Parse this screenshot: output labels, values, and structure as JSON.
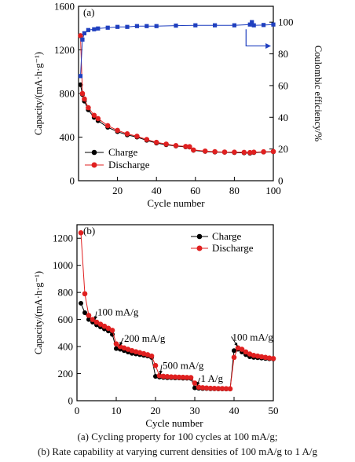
{
  "chart_data": [
    {
      "type": "line",
      "panel_label": "(a)",
      "xlabel": "Cycle number",
      "ylabel": "Capacity/(mA·h·g⁻¹)",
      "y2label": "Coulombic efficiency/%",
      "xlim": [
        0,
        100
      ],
      "ylim": [
        0,
        1600
      ],
      "y2lim": [
        0,
        110
      ],
      "xticks": [
        20,
        40,
        60,
        80,
        100
      ],
      "yticks": [
        0,
        400,
        800,
        1200,
        1600
      ],
      "y2ticks": [
        0,
        20,
        40,
        60,
        80,
        100
      ],
      "legend_position": "bottom-left",
      "series": [
        {
          "name": "Charge",
          "color": "#000000",
          "axis": "left",
          "points": [
            [
              1,
              880
            ],
            [
              2,
              790
            ],
            [
              3,
              730
            ],
            [
              5,
              650
            ],
            [
              8,
              580
            ],
            [
              10,
              550
            ],
            [
              15,
              490
            ],
            [
              20,
              450
            ],
            [
              25,
              420
            ],
            [
              30,
              400
            ],
            [
              35,
              370
            ],
            [
              40,
              345
            ],
            [
              45,
              330
            ],
            [
              50,
              318
            ],
            [
              55,
              310
            ],
            [
              57,
              308
            ],
            [
              59,
              278
            ],
            [
              65,
              268
            ],
            [
              70,
              262
            ],
            [
              75,
              260
            ],
            [
              80,
              258
            ],
            [
              85,
              255
            ],
            [
              88,
              252
            ],
            [
              90,
              258
            ],
            [
              95,
              262
            ],
            [
              100,
              265
            ]
          ]
        },
        {
          "name": "Discharge",
          "color": "#e02020",
          "axis": "left",
          "points": [
            [
              1,
              1330
            ],
            [
              2,
              800
            ],
            [
              3,
              750
            ],
            [
              5,
              670
            ],
            [
              8,
              600
            ],
            [
              10,
              570
            ],
            [
              15,
              505
            ],
            [
              20,
              462
            ],
            [
              25,
              430
            ],
            [
              30,
              408
            ],
            [
              35,
              378
            ],
            [
              40,
              352
            ],
            [
              45,
              336
            ],
            [
              50,
              322
            ],
            [
              55,
              314
            ],
            [
              57,
              312
            ],
            [
              59,
              282
            ],
            [
              65,
              272
            ],
            [
              70,
              266
            ],
            [
              75,
              263
            ],
            [
              80,
              262
            ],
            [
              85,
              260
            ],
            [
              88,
              258
            ],
            [
              90,
              262
            ],
            [
              95,
              265
            ],
            [
              100,
              268
            ]
          ]
        },
        {
          "name": "Coulombic efficiency",
          "color": "#1f3fbf",
          "axis": "right",
          "points": [
            [
              1,
              66
            ],
            [
              2,
              89
            ],
            [
              3,
              93
            ],
            [
              5,
              95
            ],
            [
              8,
              95.5
            ],
            [
              10,
              96
            ],
            [
              15,
              96.5
            ],
            [
              20,
              97
            ],
            [
              25,
              97
            ],
            [
              30,
              97.5
            ],
            [
              35,
              97.5
            ],
            [
              40,
              97.5
            ],
            [
              50,
              97.8
            ],
            [
              60,
              98
            ],
            [
              70,
              98
            ],
            [
              80,
              98
            ],
            [
              88,
              98.5
            ],
            [
              89,
              100
            ],
            [
              90,
              98
            ],
            [
              95,
              98.2
            ],
            [
              100,
              98.5
            ]
          ]
        }
      ],
      "annotation": {
        "type": "arrow",
        "from": [
          86,
          95.5
        ],
        "to": [
          96,
          85
        ],
        "points_to": "right-axis"
      }
    },
    {
      "type": "line",
      "panel_label": "(b)",
      "xlabel": "Cycle number",
      "ylabel": "Capacity/(mA·h·g⁻¹)",
      "xlim": [
        0,
        50
      ],
      "ylim": [
        0,
        1300
      ],
      "xticks": [
        0,
        10,
        20,
        30,
        40,
        50
      ],
      "yticks": [
        0,
        200,
        400,
        600,
        800,
        1000,
        1200
      ],
      "legend_position": "top-right",
      "series": [
        {
          "name": "Charge",
          "color": "#000000",
          "points": [
            [
              1,
              720
            ],
            [
              2,
              650
            ],
            [
              3,
              600
            ],
            [
              4,
              580
            ],
            [
              5,
              560
            ],
            [
              6,
              545
            ],
            [
              7,
              530
            ],
            [
              8,
              515
            ],
            [
              9,
              490
            ],
            [
              10,
              385
            ],
            [
              11,
              380
            ],
            [
              12,
              370
            ],
            [
              13,
              360
            ],
            [
              14,
              350
            ],
            [
              15,
              345
            ],
            [
              16,
              340
            ],
            [
              17,
              335
            ],
            [
              18,
              330
            ],
            [
              19,
              320
            ],
            [
              20,
              180
            ],
            [
              21,
              175
            ],
            [
              22,
              172
            ],
            [
              23,
              170
            ],
            [
              24,
              170
            ],
            [
              25,
              168
            ],
            [
              26,
              168
            ],
            [
              27,
              166
            ],
            [
              28,
              166
            ],
            [
              29,
              165
            ],
            [
              30,
              95
            ],
            [
              31,
              92
            ],
            [
              32,
              90
            ],
            [
              33,
              90
            ],
            [
              34,
              88
            ],
            [
              35,
              88
            ],
            [
              36,
              87
            ],
            [
              37,
              87
            ],
            [
              38,
              86
            ],
            [
              39,
              86
            ],
            [
              40,
              370
            ],
            [
              41,
              380
            ],
            [
              42,
              360
            ],
            [
              43,
              340
            ],
            [
              44,
              325
            ],
            [
              45,
              320
            ],
            [
              46,
              318
            ],
            [
              47,
              315
            ],
            [
              48,
              312
            ],
            [
              49,
              310
            ],
            [
              50,
              308
            ]
          ]
        },
        {
          "name": "Discharge",
          "color": "#e02020",
          "points": [
            [
              1,
              1240
            ],
            [
              2,
              790
            ],
            [
              3,
              630
            ],
            [
              4,
              600
            ],
            [
              5,
              580
            ],
            [
              6,
              565
            ],
            [
              7,
              550
            ],
            [
              8,
              535
            ],
            [
              9,
              520
            ],
            [
              10,
              420
            ],
            [
              11,
              400
            ],
            [
              12,
              390
            ],
            [
              13,
              380
            ],
            [
              14,
              370
            ],
            [
              15,
              362
            ],
            [
              16,
              355
            ],
            [
              17,
              348
            ],
            [
              18,
              340
            ],
            [
              19,
              330
            ],
            [
              20,
              260
            ],
            [
              21,
              185
            ],
            [
              22,
              180
            ],
            [
              23,
              178
            ],
            [
              24,
              176
            ],
            [
              25,
              175
            ],
            [
              26,
              174
            ],
            [
              27,
              173
            ],
            [
              28,
              172
            ],
            [
              29,
              171
            ],
            [
              30,
              130
            ],
            [
              31,
              100
            ],
            [
              32,
              96
            ],
            [
              33,
              94
            ],
            [
              34,
              92
            ],
            [
              35,
              91
            ],
            [
              36,
              90
            ],
            [
              37,
              90
            ],
            [
              38,
              89
            ],
            [
              39,
              88
            ],
            [
              40,
              320
            ],
            [
              41,
              390
            ],
            [
              42,
              380
            ],
            [
              43,
              360
            ],
            [
              44,
              345
            ],
            [
              45,
              335
            ],
            [
              46,
              330
            ],
            [
              47,
              325
            ],
            [
              48,
              320
            ],
            [
              49,
              315
            ],
            [
              50,
              312
            ]
          ]
        }
      ],
      "annotations": [
        {
          "text": "100 mA/g",
          "at": [
            5.2,
            630
          ],
          "target": [
            4.2,
            585
          ]
        },
        {
          "text": "200 mA/g",
          "at": [
            12,
            435
          ],
          "target": [
            10.5,
            395
          ]
        },
        {
          "text": "500 mA/g",
          "at": [
            21.8,
            236
          ],
          "target": [
            20.8,
            182
          ]
        },
        {
          "text": "1 A/g",
          "at": [
            31.5,
            140
          ],
          "target": [
            30.2,
            100
          ]
        },
        {
          "text": "100 mA/g",
          "at": [
            39.5,
            445
          ],
          "target": [
            40.5,
            390
          ]
        }
      ]
    }
  ],
  "captions": {
    "a": "(a)  Cycling property  for 100 cycles at 100  mA/g;",
    "b": "(b) Rate capability at varying current densities of 100 mA/g to 1 A/g"
  },
  "colors": {
    "charge": "#000000",
    "discharge": "#e02020",
    "efficiency": "#1f3fbf"
  }
}
